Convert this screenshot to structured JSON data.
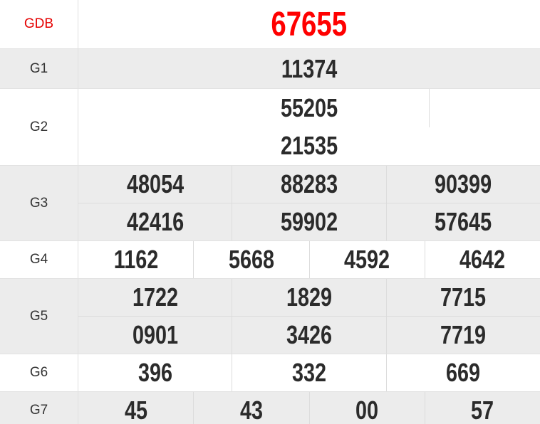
{
  "table": {
    "rows": [
      {
        "id": "GDB",
        "label": "GDB",
        "special": true,
        "background": "white",
        "columns": 1,
        "lines": [
          [
            "67655"
          ]
        ]
      },
      {
        "id": "G1",
        "label": "G1",
        "special": false,
        "background": "gray",
        "columns": 1,
        "lines": [
          [
            "11374"
          ]
        ]
      },
      {
        "id": "G2",
        "label": "G2",
        "special": false,
        "background": "white",
        "columns": 1,
        "partial_divider": true,
        "lines": [
          [
            "55205"
          ],
          [
            "21535"
          ]
        ]
      },
      {
        "id": "G3",
        "label": "G3",
        "special": false,
        "background": "gray",
        "columns": 3,
        "lines": [
          [
            "48054",
            "88283",
            "90399"
          ],
          [
            "42416",
            "59902",
            "57645"
          ]
        ]
      },
      {
        "id": "G4",
        "label": "G4",
        "special": false,
        "background": "white",
        "columns": 4,
        "lines": [
          [
            "1162",
            "5668",
            "4592",
            "4642"
          ]
        ]
      },
      {
        "id": "G5",
        "label": "G5",
        "special": false,
        "background": "gray",
        "columns": 3,
        "lines": [
          [
            "1722",
            "1829",
            "7715"
          ],
          [
            "0901",
            "3426",
            "7719"
          ]
        ]
      },
      {
        "id": "G6",
        "label": "G6",
        "special": false,
        "background": "white",
        "columns": 3,
        "lines": [
          [
            "396",
            "332",
            "669"
          ]
        ]
      },
      {
        "id": "G7",
        "label": "G7",
        "special": false,
        "background": "gray",
        "columns": 4,
        "lines": [
          [
            "45",
            "43",
            "00",
            "57"
          ]
        ]
      }
    ]
  },
  "colors": {
    "accent_red": "#ff0000",
    "label_red": "#e50000",
    "number_dark": "#2b2b2b",
    "label_dark": "#333333",
    "row_gray": "#ececec",
    "border_row": "#e2e2e2",
    "border_cell": "#dcdcdc",
    "border_labelcol": "#e0e0e0"
  }
}
